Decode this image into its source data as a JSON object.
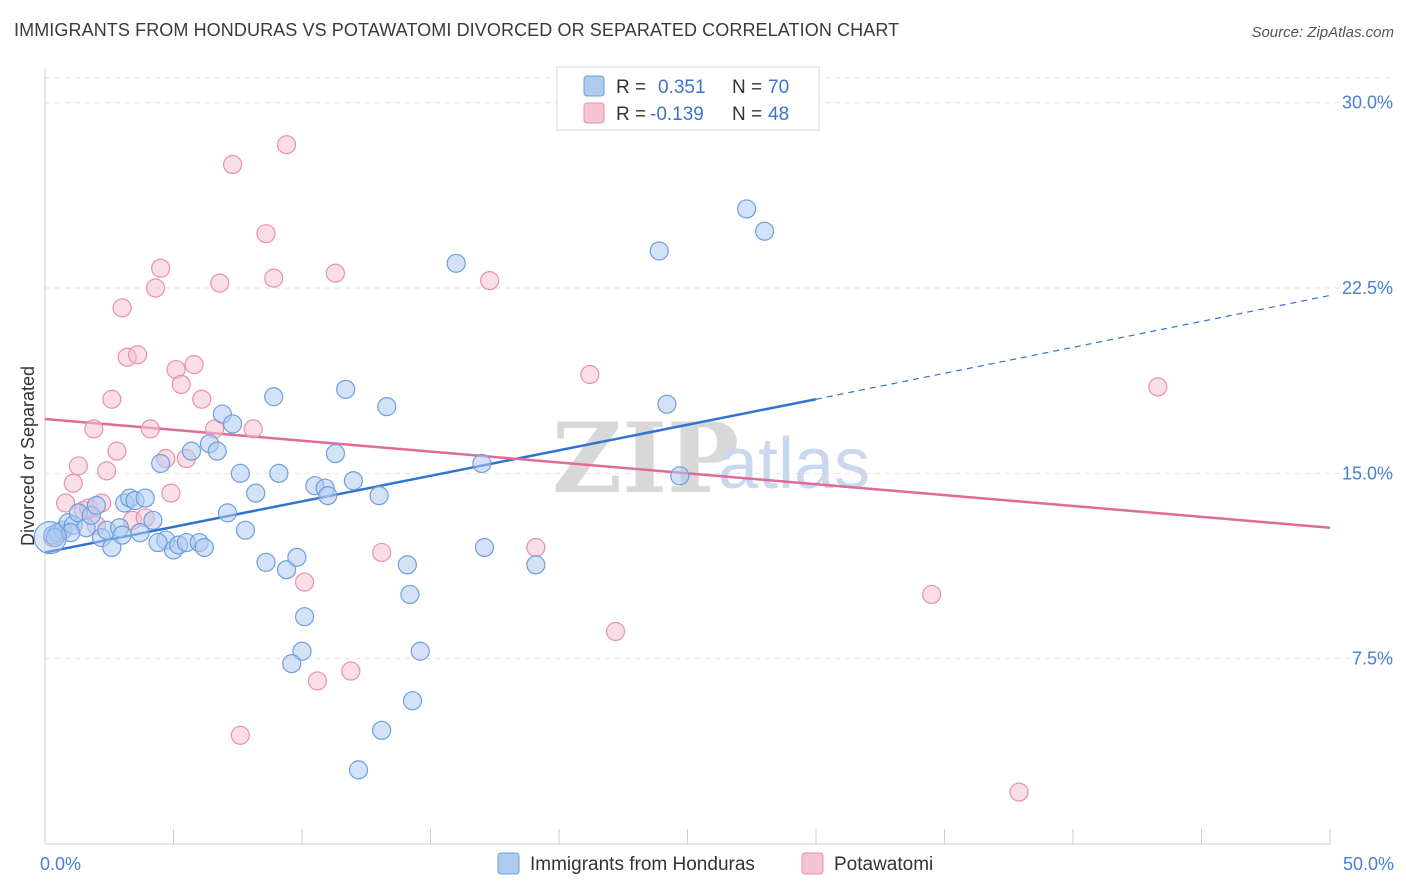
{
  "header": {
    "title": "IMMIGRANTS FROM HONDURAS VS POTAWATOMI DIVORCED OR SEPARATED CORRELATION CHART",
    "source": "Source: ZipAtlas.com"
  },
  "watermark": {
    "zip": "ZIP",
    "atlas": "atlas"
  },
  "legend": {
    "rows": [
      {
        "r_label": "R =",
        "r_value": "0.351",
        "n_label": "N =",
        "n_value": "70"
      },
      {
        "r_label": "R =",
        "r_value": "-0.139",
        "n_label": "N =",
        "n_value": "48"
      }
    ]
  },
  "colors": {
    "blue_fill": "#aecbf0",
    "blue_stroke": "#6e9fdc",
    "blue_line": "#2f74cf",
    "pink_fill": "#f6c3d4",
    "pink_stroke": "#e890ae",
    "pink_line": "#e06a98",
    "grid": "#e2e2e2",
    "axis_text": "#4a7fd0"
  },
  "chart_data": {
    "type": "scatter",
    "xlabel": "",
    "ylabel": "Divorced or Separated",
    "xlim": [
      0,
      50
    ],
    "ylim": [
      0,
      31
    ],
    "x_tick_labels": [
      {
        "value": 0,
        "label": "0.0%"
      },
      {
        "value": 50,
        "label": "50.0%"
      }
    ],
    "y_tick_labels": [
      {
        "value": 7.5,
        "label": "7.5%"
      },
      {
        "value": 15.0,
        "label": "15.0%"
      },
      {
        "value": 22.5,
        "label": "22.5%"
      },
      {
        "value": 30.0,
        "label": "30.0%"
      }
    ],
    "grid": true,
    "legend_position": "top-center",
    "series": [
      {
        "name": "Immigrants from Honduras",
        "color": "#6e9fdc",
        "trend": {
          "x0": 0,
          "y0": 11.8,
          "x1": 30,
          "y1": 18.0,
          "dashed_to_x": 50,
          "dashed_to_y": 22.2
        },
        "points": [
          [
            0.3,
            12.5
          ],
          [
            0.5,
            12.6
          ],
          [
            0.7,
            12.7
          ],
          [
            0.9,
            13.0
          ],
          [
            1.1,
            12.9
          ],
          [
            1.3,
            13.4
          ],
          [
            1.6,
            12.8
          ],
          [
            1.8,
            13.3
          ],
          [
            2.0,
            13.7
          ],
          [
            2.2,
            12.4
          ],
          [
            2.4,
            12.7
          ],
          [
            2.6,
            12.0
          ],
          [
            2.9,
            12.8
          ],
          [
            3.1,
            13.8
          ],
          [
            3.3,
            14.0
          ],
          [
            3.5,
            13.9
          ],
          [
            3.7,
            12.6
          ],
          [
            3.9,
            14.0
          ],
          [
            4.2,
            13.1
          ],
          [
            4.5,
            15.4
          ],
          [
            4.7,
            12.3
          ],
          [
            5.0,
            11.9
          ],
          [
            5.2,
            12.1
          ],
          [
            5.5,
            12.2
          ],
          [
            5.7,
            15.9
          ],
          [
            6.0,
            12.2
          ],
          [
            6.4,
            16.2
          ],
          [
            6.7,
            15.9
          ],
          [
            6.9,
            17.4
          ],
          [
            7.1,
            13.4
          ],
          [
            7.3,
            17.0
          ],
          [
            7.6,
            15.0
          ],
          [
            7.8,
            12.7
          ],
          [
            8.2,
            14.2
          ],
          [
            8.6,
            11.4
          ],
          [
            8.9,
            18.1
          ],
          [
            9.1,
            15.0
          ],
          [
            9.4,
            11.1
          ],
          [
            9.8,
            11.6
          ],
          [
            10.1,
            9.2
          ],
          [
            10.5,
            14.5
          ],
          [
            10.9,
            14.4
          ],
          [
            11.0,
            14.1
          ],
          [
            11.3,
            15.8
          ],
          [
            11.7,
            18.4
          ],
          [
            12.0,
            14.7
          ],
          [
            12.2,
            3.0
          ],
          [
            13.0,
            14.1
          ],
          [
            13.3,
            17.7
          ],
          [
            14.1,
            11.3
          ],
          [
            14.2,
            10.1
          ],
          [
            14.6,
            7.8
          ],
          [
            14.3,
            5.8
          ],
          [
            13.1,
            4.6
          ],
          [
            10.0,
            7.8
          ],
          [
            9.6,
            7.3
          ],
          [
            16.0,
            23.5
          ],
          [
            17.0,
            15.4
          ],
          [
            17.1,
            12.0
          ],
          [
            19.1,
            11.3
          ],
          [
            23.9,
            24.0
          ],
          [
            24.2,
            17.8
          ],
          [
            24.7,
            14.9
          ],
          [
            27.3,
            25.7
          ],
          [
            28.0,
            24.8
          ],
          [
            0.4,
            12.4
          ],
          [
            1.0,
            12.6
          ],
          [
            4.4,
            12.2
          ],
          [
            6.2,
            12.0
          ],
          [
            3.0,
            12.5
          ]
        ]
      },
      {
        "name": "Potawatomi",
        "color": "#e890ae",
        "trend": {
          "x0": 0,
          "y0": 17.2,
          "x1": 50,
          "y1": 12.8
        },
        "points": [
          [
            0.3,
            12.4
          ],
          [
            0.5,
            12.6
          ],
          [
            0.8,
            13.8
          ],
          [
            1.1,
            14.6
          ],
          [
            1.3,
            15.3
          ],
          [
            1.5,
            13.5
          ],
          [
            1.7,
            13.6
          ],
          [
            1.9,
            16.8
          ],
          [
            2.2,
            13.8
          ],
          [
            2.4,
            15.1
          ],
          [
            2.6,
            18.0
          ],
          [
            2.8,
            15.9
          ],
          [
            3.0,
            21.7
          ],
          [
            3.2,
            19.7
          ],
          [
            3.4,
            13.1
          ],
          [
            3.6,
            19.8
          ],
          [
            3.9,
            13.2
          ],
          [
            4.1,
            16.8
          ],
          [
            4.3,
            22.5
          ],
          [
            4.5,
            23.3
          ],
          [
            4.7,
            15.6
          ],
          [
            4.9,
            14.2
          ],
          [
            5.1,
            19.2
          ],
          [
            5.3,
            18.6
          ],
          [
            5.5,
            15.6
          ],
          [
            5.8,
            19.4
          ],
          [
            6.1,
            18.0
          ],
          [
            6.6,
            16.8
          ],
          [
            6.8,
            22.7
          ],
          [
            7.3,
            27.5
          ],
          [
            7.6,
            4.4
          ],
          [
            8.1,
            16.8
          ],
          [
            8.6,
            24.7
          ],
          [
            8.9,
            22.9
          ],
          [
            9.4,
            28.3
          ],
          [
            10.1,
            10.6
          ],
          [
            10.6,
            6.6
          ],
          [
            11.3,
            23.1
          ],
          [
            11.9,
            7.0
          ],
          [
            13.1,
            11.8
          ],
          [
            17.3,
            22.8
          ],
          [
            19.1,
            12.0
          ],
          [
            21.2,
            19.0
          ],
          [
            22.2,
            8.6
          ],
          [
            34.5,
            10.1
          ],
          [
            37.9,
            2.1
          ],
          [
            43.3,
            18.5
          ],
          [
            2.0,
            12.9
          ]
        ]
      }
    ]
  }
}
